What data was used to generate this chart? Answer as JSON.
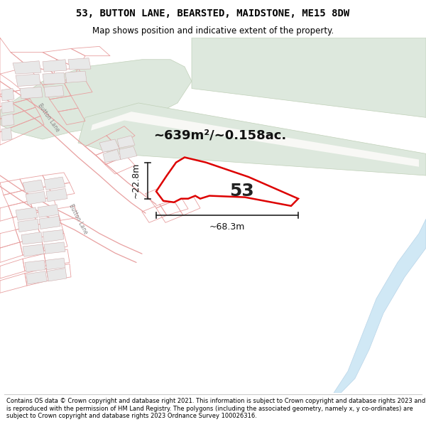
{
  "title_line1": "53, BUTTON LANE, BEARSTED, MAIDSTONE, ME15 8DW",
  "title_line2": "Map shows position and indicative extent of the property.",
  "footer_text": "Contains OS data © Crown copyright and database right 2021. This information is subject to Crown copyright and database rights 2023 and is reproduced with the permission of HM Land Registry. The polygons (including the associated geometry, namely x, y co-ordinates) are subject to Crown copyright and database rights 2023 Ordnance Survey 100026316.",
  "area_text": "~639m²/~0.158ac.",
  "label_number": "53",
  "dim_width": "~68.3m",
  "dim_height": "~22.8m",
  "bg_color": "#ffffff",
  "map_bg": "#ffffff",
  "plot_line": "#e8a0a0",
  "plot_edge": "#dd0000",
  "field_color": "#dde8dd",
  "field_edge": "#c0d0b8",
  "block_color": "#e8e8e8",
  "block_edge": "#d0b0b0",
  "river_color": "#d0e8f5",
  "river_edge": "#b8d4e8",
  "road_color": "#f5e0dc",
  "title_fontsize": 10,
  "subtitle_fontsize": 8.5,
  "footer_fontsize": 6.0
}
